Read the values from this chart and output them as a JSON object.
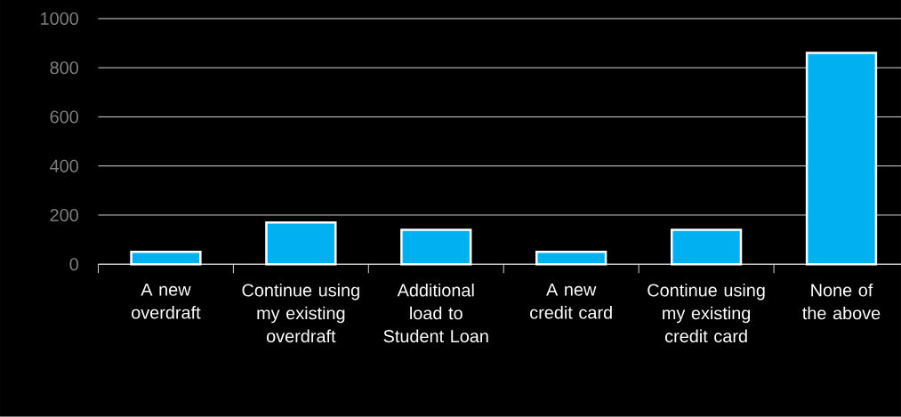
{
  "chart_data": {
    "type": "bar",
    "categories": [
      "A new overdraft",
      "Continue using my existing overdraft",
      "Additional load to Student Loan",
      "A new credit card",
      "Continue using my existing credit card",
      "None of the above"
    ],
    "values": [
      50,
      170,
      140,
      50,
      140,
      860
    ],
    "color": "#00b0f0",
    "ylim": [
      0,
      1000
    ],
    "yticks": [
      0,
      200,
      400,
      600,
      800,
      1000
    ],
    "grid": "y"
  }
}
